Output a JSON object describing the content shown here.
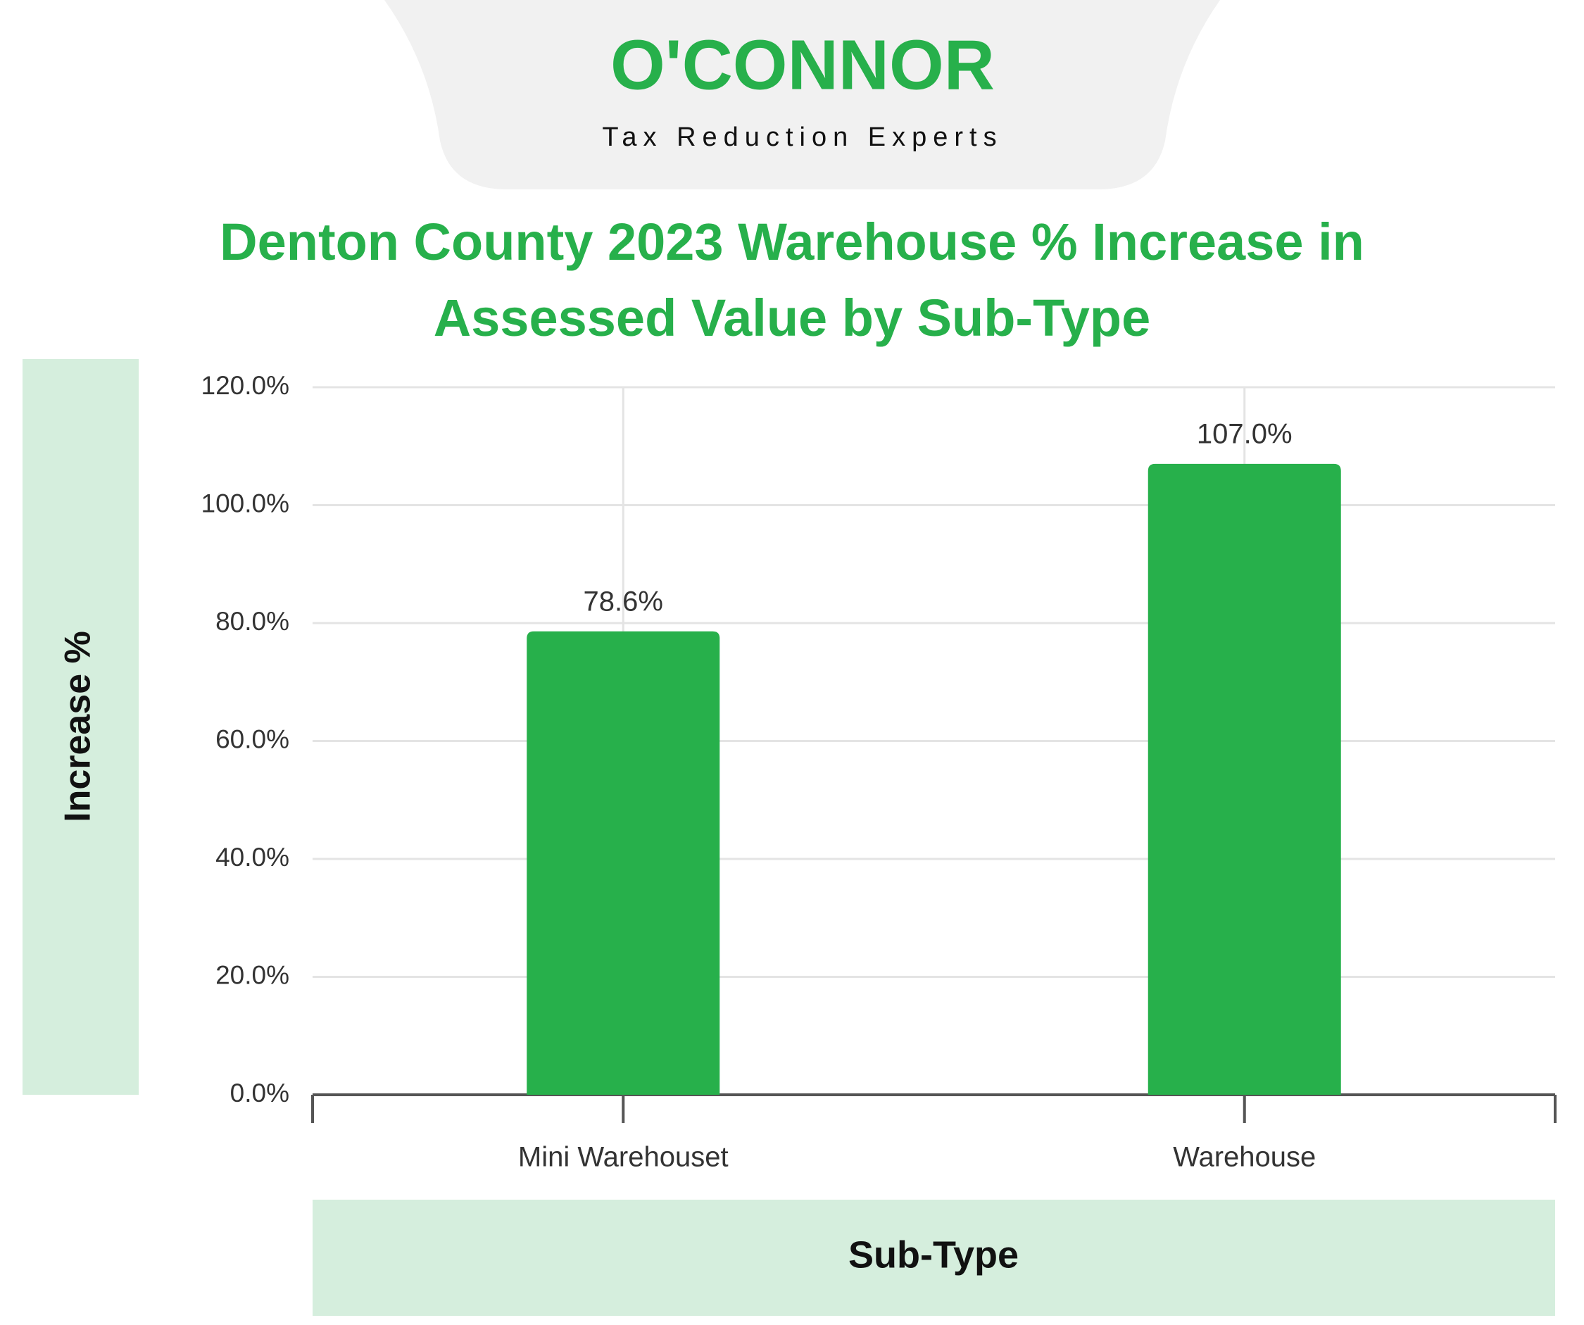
{
  "logo": {
    "name": "O'CONNOR",
    "tagline": "Tax Reduction Experts"
  },
  "chart_data": {
    "type": "bar",
    "title": "Denton County 2023 Warehouse % Increase in Assessed Value by Sub-Type",
    "xlabel": "Sub-Type",
    "ylabel": "Increase %",
    "categories": [
      "Mini Warehouset",
      "Warehouse"
    ],
    "values": [
      78.6,
      107.0
    ],
    "value_labels": [
      "78.6%",
      "107.0%"
    ],
    "color": "#27b04b",
    "ylim": [
      0,
      120
    ],
    "yticks": [
      {
        "value": 0,
        "label": "0.0%"
      },
      {
        "value": 20,
        "label": "20.0%"
      },
      {
        "value": 40,
        "label": "40.0%"
      },
      {
        "value": 60,
        "label": "60.0%"
      },
      {
        "value": 80,
        "label": "80.0%"
      },
      {
        "value": 100,
        "label": "100.0%"
      },
      {
        "value": 120,
        "label": "120.0%"
      }
    ],
    "grid": true
  }
}
